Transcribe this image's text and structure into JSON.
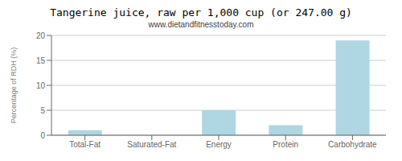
{
  "chart_data": {
    "type": "bar",
    "title": "Tangerine juice, raw per 1,000 cup (or 247.00 g)",
    "subtitle": "www.dietandfitnesstoday.com",
    "categories": [
      "Total-Fat",
      "Saturated-Fat",
      "Energy",
      "Protein",
      "Carbohydrate"
    ],
    "values": [
      1.0,
      0.0,
      5.0,
      2.0,
      19.0
    ],
    "color": "#aed6e3",
    "ylabel": "Percentage of RDH (%)",
    "ylim": [
      0,
      20
    ],
    "yticks": [
      0,
      5,
      10,
      15,
      20
    ],
    "grid": true
  }
}
